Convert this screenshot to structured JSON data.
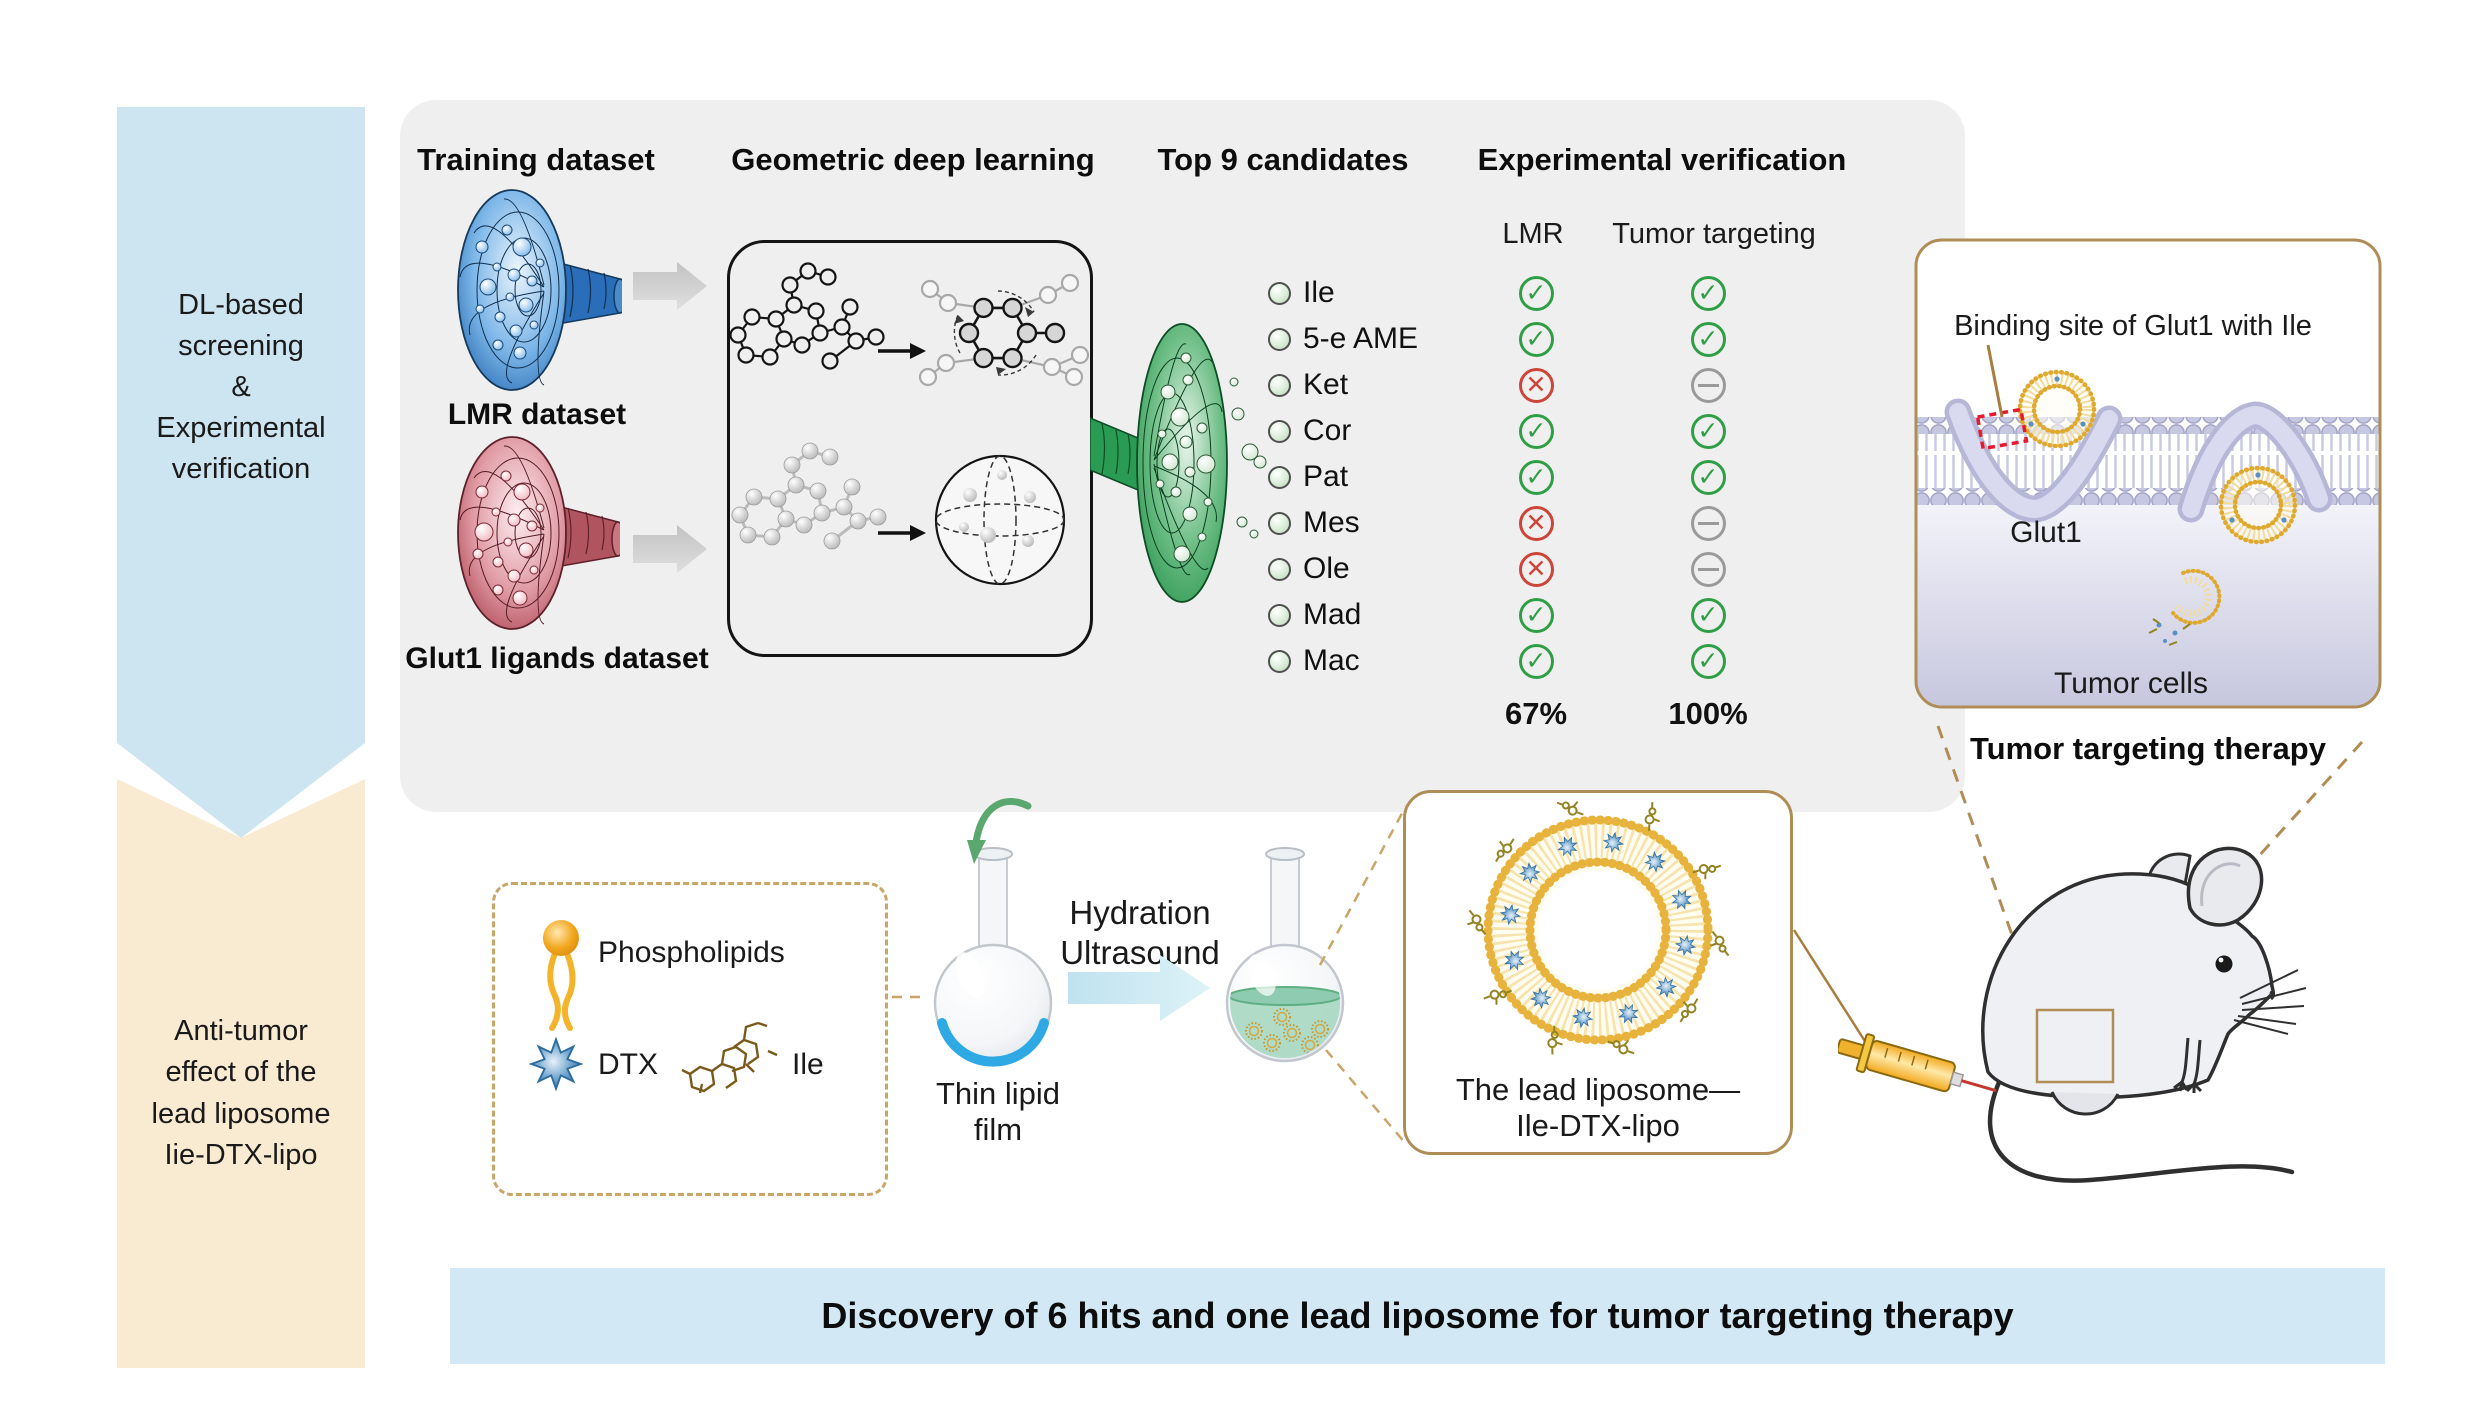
{
  "sidebar": {
    "stage1_label": "DL-based\nscreening\n&\nExperimental\nverification",
    "stage2_label": "Anti-tumor\neffect of the\nlead liposome\nIie-DTX-lipo"
  },
  "pipeline": {
    "headers": {
      "training": "Training dataset",
      "gdl": "Geometric deep learning",
      "candidates": "Top 9 candidates",
      "verification": "Experimental verification"
    },
    "datasets": {
      "lmr_label": "LMR dataset",
      "glut1_label": "Glut1 ligands dataset"
    },
    "verification": {
      "col_lmr": "LMR",
      "col_tumor": "Tumor targeting",
      "lmr_total": "67%",
      "tumor_total": "100%"
    },
    "candidates": [
      {
        "name": "Ile",
        "lmr": "pass",
        "tumor": "pass"
      },
      {
        "name": "5-e AME",
        "lmr": "pass",
        "tumor": "pass"
      },
      {
        "name": "Ket",
        "lmr": "fail",
        "tumor": "na"
      },
      {
        "name": "Cor",
        "lmr": "pass",
        "tumor": "pass"
      },
      {
        "name": "Pat",
        "lmr": "pass",
        "tumor": "pass"
      },
      {
        "name": "Mes",
        "lmr": "fail",
        "tumor": "na"
      },
      {
        "name": "Ole",
        "lmr": "fail",
        "tumor": "na"
      },
      {
        "name": "Mad",
        "lmr": "pass",
        "tumor": "pass"
      },
      {
        "name": "Mac",
        "lmr": "pass",
        "tumor": "pass"
      }
    ]
  },
  "binding_panel": {
    "title": "Binding site of Glut1 with Ile",
    "glut1_label": "Glut1",
    "tumor_cells_label": "Tumor cells",
    "caption": "Tumor targeting therapy"
  },
  "preparation": {
    "components": {
      "phospholipids_label": "Phospholipids",
      "dtx_label": "DTX",
      "ile_label": "Ile"
    },
    "film_label": "Thin lipid film",
    "process_label": "Hydration\nUltrasound",
    "liposome_label": "The lead liposome—\nIle-DTX-lipo"
  },
  "footer": {
    "conclusion": "Discovery of 6 hits and one lead liposome for tumor targeting therapy"
  },
  "colors": {
    "stage1_bg": "#cde5f1",
    "stage2_bg": "#f9ead2",
    "panel_bg": "#efefef",
    "footer_bg": "#d2e8f4",
    "pass_green": "#2f9e44",
    "fail_red": "#cd4438",
    "na_gray": "#9a9a9a",
    "tan_border": "#b08d57"
  }
}
